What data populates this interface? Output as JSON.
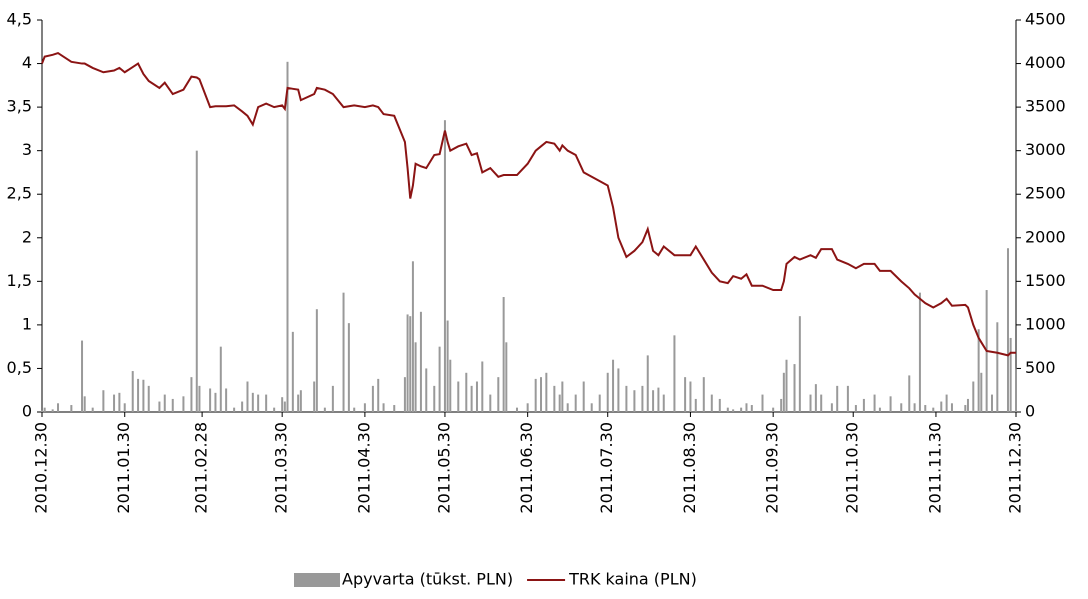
{
  "chart_data": {
    "type": "bar-line",
    "x": [
      "2010.12.30",
      "2010.12.31",
      "2011.01.03",
      "2011.01.05",
      "2011.01.10",
      "2011.01.14",
      "2011.01.15",
      "2011.01.18",
      "2011.01.22",
      "2011.01.26",
      "2011.01.28",
      "2011.01.30",
      "2011.02.02",
      "2011.02.04",
      "2011.02.06",
      "2011.02.08",
      "2011.02.12",
      "2011.02.14",
      "2011.02.17",
      "2011.02.21",
      "2011.02.24",
      "2011.02.26",
      "2011.02.27",
      "2011.03.03",
      "2011.03.05",
      "2011.03.07",
      "2011.03.09",
      "2011.03.12",
      "2011.03.15",
      "2011.03.17",
      "2011.03.19",
      "2011.03.21",
      "2011.03.24",
      "2011.03.27",
      "2011.03.30",
      "2011.03.31",
      "2011.04.01",
      "2011.04.03",
      "2011.04.05",
      "2011.04.06",
      "2011.04.11",
      "2011.04.12",
      "2011.04.15",
      "2011.04.18",
      "2011.04.22",
      "2011.04.24",
      "2011.04.26",
      "2011.04.30",
      "2011.05.03",
      "2011.05.05",
      "2011.05.07",
      "2011.05.11",
      "2011.05.15",
      "2011.05.16",
      "2011.05.17",
      "2011.05.18",
      "2011.05.19",
      "2011.05.21",
      "2011.05.23",
      "2011.05.26",
      "2011.05.28",
      "2011.05.30",
      "2011.05.31",
      "2011.06.01",
      "2011.06.04",
      "2011.06.07",
      "2011.06.09",
      "2011.06.11",
      "2011.06.13",
      "2011.06.16",
      "2011.06.19",
      "2011.06.21",
      "2011.06.22",
      "2011.06.26",
      "2011.06.30",
      "2011.07.03",
      "2011.07.05",
      "2011.07.07",
      "2011.07.10",
      "2011.07.12",
      "2011.07.13",
      "2011.07.15",
      "2011.07.18",
      "2011.07.21",
      "2011.07.24",
      "2011.07.27",
      "2011.07.30",
      "2011.08.01",
      "2011.08.03",
      "2011.08.06",
      "2011.08.09",
      "2011.08.12",
      "2011.08.14",
      "2011.08.16",
      "2011.08.18",
      "2011.08.20",
      "2011.08.24",
      "2011.08.28",
      "2011.08.30",
      "2011.09.01",
      "2011.09.04",
      "2011.09.07",
      "2011.09.10",
      "2011.09.13",
      "2011.09.15",
      "2011.09.18",
      "2011.09.20",
      "2011.09.22",
      "2011.09.26",
      "2011.09.30",
      "2011.10.03",
      "2011.10.04",
      "2011.10.05",
      "2011.10.08",
      "2011.10.10",
      "2011.10.14",
      "2011.10.16",
      "2011.10.18",
      "2011.10.22",
      "2011.10.24",
      "2011.10.28",
      "2011.10.31",
      "2011.11.03",
      "2011.11.07",
      "2011.11.09",
      "2011.11.13",
      "2011.11.17",
      "2011.11.20",
      "2011.11.22",
      "2011.11.24",
      "2011.11.26",
      "2011.11.29",
      "2011.12.02",
      "2011.12.04",
      "2011.12.06",
      "2011.12.11",
      "2011.12.12",
      "2011.12.14",
      "2011.12.16",
      "2011.12.17",
      "2011.12.19",
      "2011.12.21",
      "2011.12.23",
      "2011.12.27",
      "2011.12.28",
      "2011.12.30"
    ],
    "series": [
      {
        "name": "Apyvarta (tūkst. PLN)",
        "color": "#999999",
        "kind": "bar",
        "axis": "y",
        "values": [
          0.02,
          0.05,
          0.03,
          0.1,
          0.08,
          0.82,
          0.18,
          0.05,
          0.25,
          0.2,
          0.22,
          0.1,
          0.47,
          0.38,
          0.37,
          0.3,
          0.12,
          0.2,
          0.15,
          0.18,
          0.4,
          3.0,
          0.3,
          0.27,
          0.22,
          0.75,
          0.27,
          0.05,
          0.12,
          0.35,
          0.22,
          0.2,
          0.2,
          0.05,
          0.17,
          0.12,
          4.02,
          0.92,
          0.2,
          0.25,
          0.35,
          1.18,
          0.05,
          0.3,
          1.37,
          1.02,
          0.05,
          0.1,
          0.3,
          0.38,
          0.1,
          0.08,
          0.4,
          1.12,
          1.1,
          1.73,
          0.8,
          1.15,
          0.5,
          0.3,
          0.75,
          3.35,
          1.05,
          0.6,
          0.35,
          0.45,
          0.3,
          0.35,
          0.58,
          0.2,
          0.4,
          1.32,
          0.8,
          0.05,
          0.1,
          0.38,
          0.4,
          0.45,
          0.3,
          0.2,
          0.35,
          0.1,
          0.2,
          0.35,
          0.1,
          0.2,
          0.45,
          0.6,
          0.5,
          0.3,
          0.25,
          0.3,
          0.65,
          0.25,
          0.28,
          0.2,
          0.88,
          0.4,
          0.35,
          0.15,
          0.4,
          0.2,
          0.15,
          0.05,
          0.03,
          0.05,
          0.1,
          0.08,
          0.2,
          0.05,
          0.15,
          0.45,
          0.6,
          0.55,
          1.1,
          0.2,
          0.32,
          0.2,
          0.1,
          0.3,
          0.3,
          0.08,
          0.15,
          0.2,
          0.05,
          0.18,
          0.1,
          0.42,
          0.1,
          1.37,
          0.08,
          0.05,
          0.12,
          0.2,
          0.1,
          0.08,
          0.15,
          0.35,
          0.95,
          0.45,
          1.4,
          0.2,
          1.03,
          1.88,
          0.85,
          0.5
        ]
      },
      {
        "name": "TRK kaina (PLN)",
        "color": "#8b1414",
        "kind": "line",
        "axis": "y2",
        "values": [
          4000,
          4080,
          4100,
          4120,
          4020,
          4000,
          4000,
          3950,
          3900,
          3920,
          3950,
          3900,
          3960,
          4000,
          3880,
          3800,
          3720,
          3780,
          3650,
          3700,
          3850,
          3840,
          3820,
          3500,
          3510,
          3510,
          3510,
          3520,
          3450,
          3400,
          3300,
          3500,
          3540,
          3500,
          3520,
          3480,
          3720,
          3710,
          3700,
          3580,
          3650,
          3720,
          3700,
          3650,
          3500,
          3510,
          3520,
          3500,
          3520,
          3500,
          3420,
          3400,
          3100,
          2800,
          2450,
          2600,
          2850,
          2820,
          2800,
          2950,
          2960,
          3230,
          3100,
          3000,
          3050,
          3080,
          2950,
          2970,
          2750,
          2800,
          2700,
          2720,
          2720,
          2720,
          2850,
          3000,
          3050,
          3100,
          3080,
          3000,
          3060,
          3000,
          2950,
          2750,
          2700,
          2650,
          2600,
          2350,
          2000,
          1780,
          1850,
          1950,
          2100,
          1850,
          1800,
          1900,
          1800,
          1800,
          1800,
          1900,
          1750,
          1600,
          1500,
          1480,
          1560,
          1530,
          1580,
          1450,
          1450,
          1400,
          1400,
          1500,
          1700,
          1780,
          1750,
          1800,
          1770,
          1870,
          1870,
          1750,
          1700,
          1650,
          1700,
          1700,
          1620,
          1620,
          1500,
          1420,
          1350,
          1300,
          1250,
          1200,
          1250,
          1300,
          1220,
          1230,
          1200,
          1000,
          850,
          800,
          700,
          690,
          680,
          650,
          680,
          680
        ]
      }
    ],
    "xlim": [
      "2010.12.30",
      "2011.12.30"
    ],
    "xticks": [
      "2010.12.30",
      "2011.01.30",
      "2011.02.28",
      "2011.03.30",
      "2011.04.30",
      "2011.05.30",
      "2011.06.30",
      "2011.07.30",
      "2011.08.30",
      "2011.09.30",
      "2011.10.30",
      "2011.11.30",
      "2011.12.30"
    ],
    "ylim": [
      0,
      4.5
    ],
    "yticks": [
      0,
      {
        "value": 0.5,
        "label": "0,5"
      },
      1,
      {
        "value": 1.5,
        "label": "1,5"
      },
      2,
      {
        "value": 2.5,
        "label": "2,5"
      },
      3,
      {
        "value": 3.5,
        "label": "3,5"
      },
      4,
      {
        "value": 4.5,
        "label": "4,5"
      }
    ],
    "y2lim": [
      0,
      4500
    ],
    "y2ticks": [
      0,
      500,
      1000,
      1500,
      2000,
      2500,
      3000,
      3500,
      4000,
      4500
    ],
    "legend": "bottom"
  }
}
